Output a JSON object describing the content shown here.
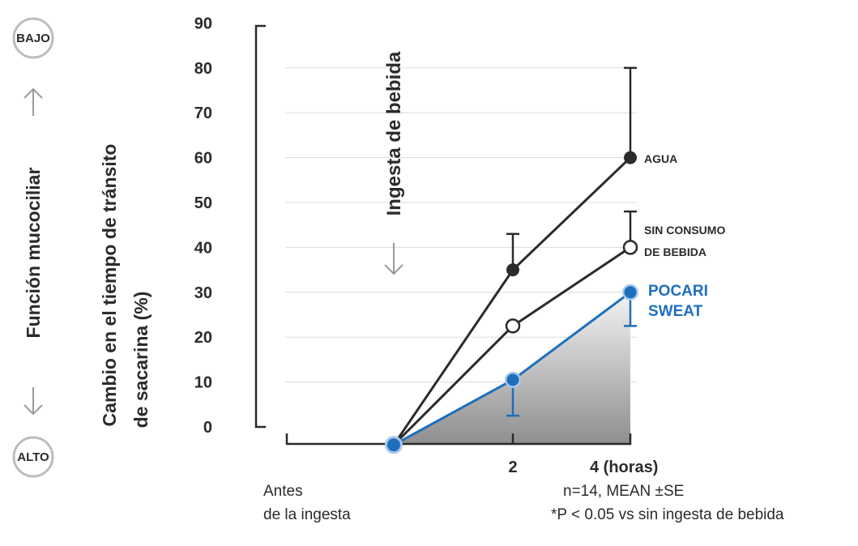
{
  "side_labels": {
    "top_badge": "BAJO",
    "bottom_badge": "ALTO",
    "axis_title": "Función mucociliar"
  },
  "chart_data": {
    "type": "line",
    "ylabel_line1": "Cambio en el tiempo de tránsito",
    "ylabel_line2": "de sacarina (%)",
    "yticks": [
      "90",
      "80",
      "70",
      "60",
      "50",
      "40",
      "30",
      "20",
      "10",
      "0"
    ],
    "ylim": [
      0,
      90
    ],
    "xticks": [
      "2",
      "4 (horas)"
    ],
    "x_baseline_label_line1": "Antes",
    "x_baseline_label_line2": "de la ingesta",
    "annotation": "Ingesta de bebida",
    "grid": true,
    "notes": [
      "n=14, MEAN ±SE",
      "*P < 0.05 vs sin ingesta de bebida"
    ],
    "series": [
      {
        "label_lines": [
          "AGUA"
        ],
        "color": "#2b2b2b",
        "marker": "filled",
        "points": [
          {
            "x": 0,
            "y": -4
          },
          {
            "x": 2,
            "y": 35,
            "err_up": 43,
            "err_down": 35
          },
          {
            "x": 4,
            "y": 60,
            "err_up": 80,
            "err_down": 60
          }
        ]
      },
      {
        "label_lines": [
          "SIN CONSUMO",
          "DE BEBIDA"
        ],
        "color": "#2b2b2b",
        "marker": "open",
        "points": [
          {
            "x": 0,
            "y": -4
          },
          {
            "x": 2,
            "y": 22.5,
            "err_up": 22.5,
            "err_down": 22.5
          },
          {
            "x": 4,
            "y": 40,
            "err_up": 48,
            "err_down": 40
          }
        ]
      },
      {
        "label_lines": [
          "POCARI",
          "SWEAT"
        ],
        "color": "#1d6fbd",
        "marker": "filled",
        "points": [
          {
            "x": 0,
            "y": -4
          },
          {
            "x": 2,
            "y": 10.5,
            "err_up": 10.5,
            "err_down": 2.5
          },
          {
            "x": 4,
            "y": 30,
            "err_up": 30,
            "err_down": 22.5
          }
        ]
      }
    ]
  }
}
